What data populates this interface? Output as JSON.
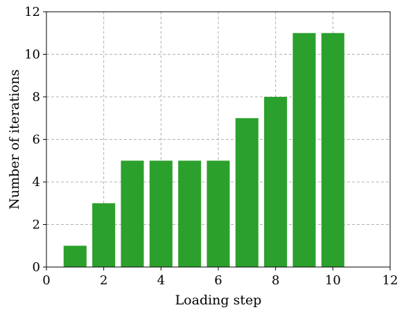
{
  "chart_data": {
    "type": "bar",
    "x": [
      1,
      2,
      3,
      4,
      5,
      6,
      7,
      8,
      9,
      10
    ],
    "values": [
      1,
      3,
      5,
      5,
      5,
      5,
      7,
      8,
      11,
      11
    ],
    "bar_width": 0.8,
    "title": "",
    "xlabel": "Loading step",
    "ylabel": "Number of iterations",
    "xlim": [
      0,
      12
    ],
    "ylim": [
      0,
      12
    ],
    "xticks": [
      0,
      2,
      4,
      6,
      8,
      10,
      12
    ],
    "yticks": [
      0,
      2,
      4,
      6,
      8,
      10,
      12
    ],
    "grid": true,
    "grid_style": "dashed",
    "bar_color": "#2ca02c",
    "grid_color": "#b0b0b0"
  }
}
